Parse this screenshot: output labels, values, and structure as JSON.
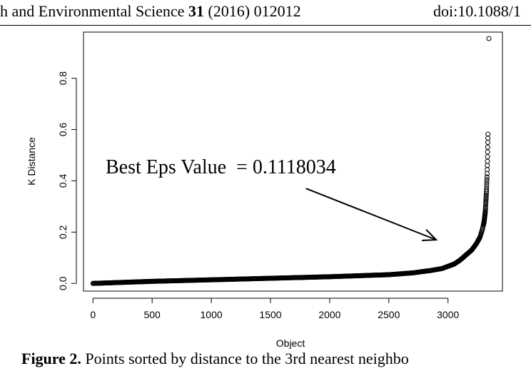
{
  "header": {
    "journal_text": "h and Environmental Science",
    "volume": "31",
    "year_article": "(2016) 012012",
    "doi": "doi:10.1088/1"
  },
  "caption": {
    "label": "Figure 2.",
    "text": "Points sorted by distance to the 3rd nearest neighbo"
  },
  "chart_data": {
    "type": "scatter",
    "title": "",
    "xlabel": "Object",
    "ylabel": "K Distance",
    "xlim": [
      -80,
      3460
    ],
    "ylim": [
      -0.03,
      0.98
    ],
    "xticks": [
      0,
      500,
      1000,
      1500,
      2000,
      2500,
      3000
    ],
    "yticks": [
      0.0,
      0.2,
      0.4,
      0.6,
      0.8
    ],
    "xtick_labels": [
      "0",
      "500",
      "1000",
      "1500",
      "2000",
      "2500",
      "3000"
    ],
    "ytick_labels": [
      "0.0",
      "0.2",
      "0.4",
      "0.6",
      "0.8"
    ],
    "grid": false,
    "marker": "open-circle",
    "curve_samples": [
      [
        0,
        0.0
      ],
      [
        500,
        0.008
      ],
      [
        1000,
        0.014
      ],
      [
        1500,
        0.02
      ],
      [
        2000,
        0.026
      ],
      [
        2500,
        0.034
      ],
      [
        2700,
        0.041
      ],
      [
        2850,
        0.05
      ],
      [
        2950,
        0.058
      ],
      [
        3050,
        0.075
      ],
      [
        3100,
        0.09
      ],
      [
        3150,
        0.11
      ],
      [
        3200,
        0.13
      ],
      [
        3240,
        0.155
      ],
      [
        3270,
        0.18
      ],
      [
        3290,
        0.21
      ],
      [
        3305,
        0.24
      ],
      [
        3315,
        0.28
      ],
      [
        3320,
        0.32
      ],
      [
        3325,
        0.36
      ],
      [
        3330,
        0.42
      ],
      [
        3333,
        0.48
      ],
      [
        3336,
        0.55
      ],
      [
        3338,
        0.59
      ]
    ],
    "outliers": [
      [
        3345,
        0.955
      ]
    ],
    "annotation": {
      "text": "Best Eps Value  = 0.1118034",
      "arrow_from": [
        1800,
        0.37
      ],
      "arrow_to": [
        2900,
        0.17
      ]
    }
  }
}
